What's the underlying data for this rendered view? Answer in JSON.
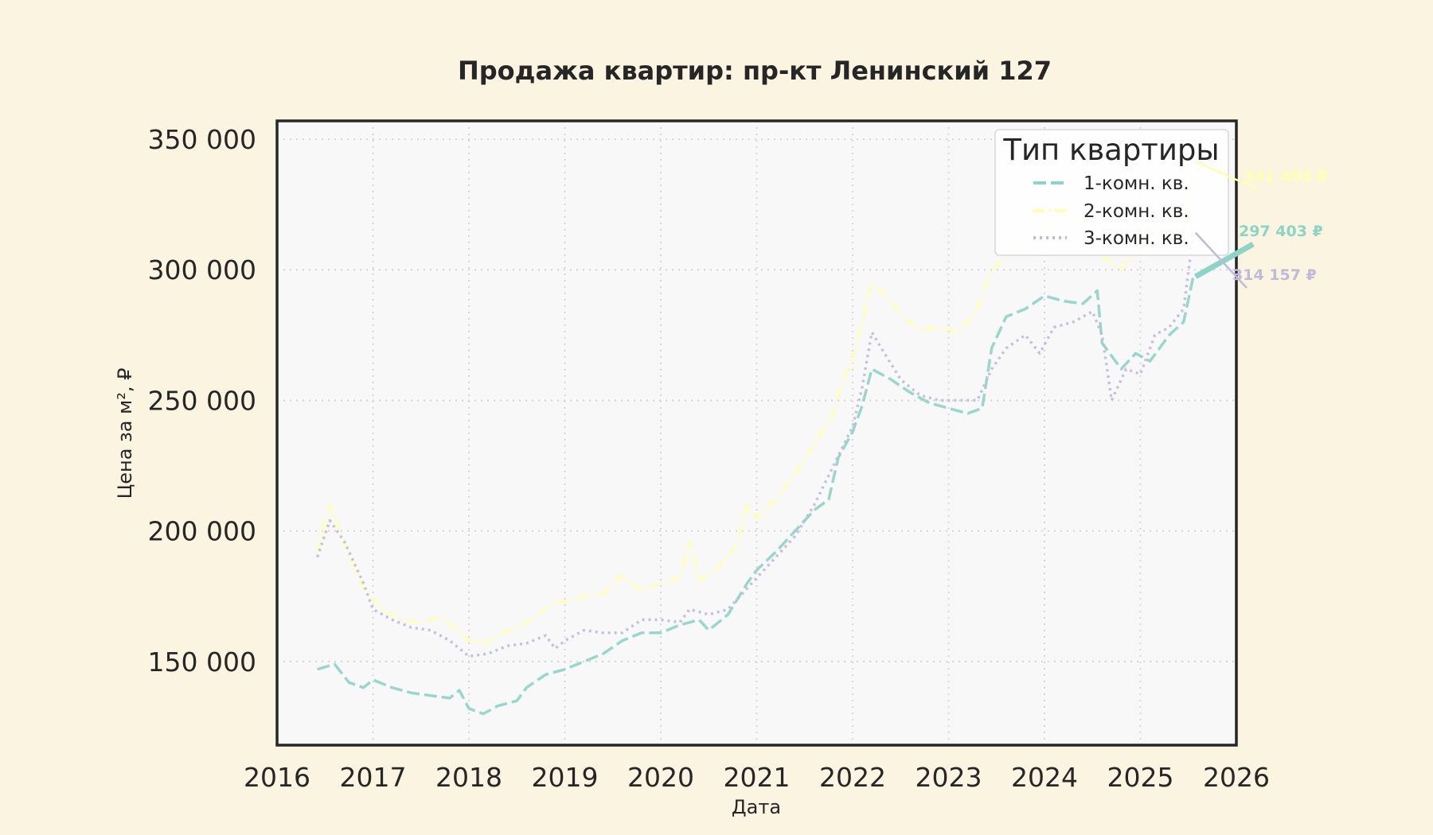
{
  "chart_data": {
    "type": "line",
    "title": "Продажа квартир: пр-кт Ленинский 127",
    "xlabel": "Дата",
    "ylabel": "Цена за м², ₽",
    "xlim": [
      2016,
      2026
    ],
    "ylim": [
      118000,
      357000
    ],
    "x_ticks": [
      "2016",
      "2017",
      "2018",
      "2019",
      "2020",
      "2021",
      "2022",
      "2023",
      "2024",
      "2025",
      "2026"
    ],
    "y_ticks": [
      "150 000",
      "200 000",
      "250 000",
      "300 000",
      "350 000"
    ],
    "grid": true,
    "legend": {
      "title": "Тип квартиры",
      "placement": "top-right"
    },
    "series": [
      {
        "name": "1-комн. кв.",
        "color": "#8dd3c7",
        "dash": "dashed",
        "end_label": "297 403 ₽",
        "points": [
          [
            2016.42,
            147000
          ],
          [
            2016.6,
            149000
          ],
          [
            2016.75,
            142000
          ],
          [
            2016.9,
            140000
          ],
          [
            2017.0,
            143000
          ],
          [
            2017.2,
            140000
          ],
          [
            2017.4,
            138000
          ],
          [
            2017.6,
            137000
          ],
          [
            2017.8,
            136000
          ],
          [
            2017.9,
            139000
          ],
          [
            2018.0,
            132000
          ],
          [
            2018.15,
            130000
          ],
          [
            2018.3,
            133000
          ],
          [
            2018.5,
            135000
          ],
          [
            2018.6,
            140000
          ],
          [
            2018.8,
            145000
          ],
          [
            2018.9,
            146000
          ],
          [
            2019.0,
            147000
          ],
          [
            2019.2,
            150000
          ],
          [
            2019.4,
            153000
          ],
          [
            2019.6,
            158000
          ],
          [
            2019.8,
            161000
          ],
          [
            2020.0,
            161000
          ],
          [
            2020.2,
            164000
          ],
          [
            2020.4,
            166000
          ],
          [
            2020.5,
            162000
          ],
          [
            2020.7,
            168000
          ],
          [
            2020.9,
            180000
          ],
          [
            2021.0,
            185000
          ],
          [
            2021.2,
            192000
          ],
          [
            2021.4,
            200000
          ],
          [
            2021.6,
            208000
          ],
          [
            2021.75,
            212000
          ],
          [
            2021.85,
            228000
          ],
          [
            2022.0,
            238000
          ],
          [
            2022.1,
            248000
          ],
          [
            2022.2,
            262000
          ],
          [
            2022.4,
            258000
          ],
          [
            2022.6,
            253000
          ],
          [
            2022.8,
            249000
          ],
          [
            2023.0,
            247000
          ],
          [
            2023.2,
            245000
          ],
          [
            2023.35,
            247000
          ],
          [
            2023.45,
            270000
          ],
          [
            2023.6,
            282000
          ],
          [
            2023.8,
            285000
          ],
          [
            2024.0,
            290000
          ],
          [
            2024.2,
            288000
          ],
          [
            2024.4,
            287000
          ],
          [
            2024.55,
            292000
          ],
          [
            2024.6,
            272000
          ],
          [
            2024.8,
            262000
          ],
          [
            2024.95,
            268000
          ],
          [
            2025.1,
            265000
          ],
          [
            2025.3,
            275000
          ],
          [
            2025.45,
            280000
          ],
          [
            2025.52,
            292000
          ],
          [
            2025.55,
            297403
          ]
        ]
      },
      {
        "name": "2-комн. кв.",
        "color": "#ffffb3",
        "dash": "dashdot",
        "end_label": "341 403 ₽",
        "points": [
          [
            2016.42,
            192000
          ],
          [
            2016.55,
            210000
          ],
          [
            2016.7,
            195000
          ],
          [
            2016.9,
            178000
          ],
          [
            2017.1,
            170000
          ],
          [
            2017.3,
            166000
          ],
          [
            2017.5,
            165000
          ],
          [
            2017.7,
            167000
          ],
          [
            2017.9,
            162000
          ],
          [
            2018.0,
            158000
          ],
          [
            2018.15,
            157000
          ],
          [
            2018.3,
            160000
          ],
          [
            2018.5,
            163000
          ],
          [
            2018.7,
            167000
          ],
          [
            2018.85,
            172000
          ],
          [
            2019.0,
            173000
          ],
          [
            2019.2,
            175000
          ],
          [
            2019.4,
            176000
          ],
          [
            2019.6,
            183000
          ],
          [
            2019.8,
            177000
          ],
          [
            2020.0,
            180000
          ],
          [
            2020.2,
            182000
          ],
          [
            2020.3,
            196000
          ],
          [
            2020.4,
            181000
          ],
          [
            2020.6,
            186000
          ],
          [
            2020.8,
            195000
          ],
          [
            2020.9,
            210000
          ],
          [
            2021.0,
            205000
          ],
          [
            2021.2,
            212000
          ],
          [
            2021.4,
            222000
          ],
          [
            2021.6,
            233000
          ],
          [
            2021.8,
            245000
          ],
          [
            2021.9,
            258000
          ],
          [
            2022.0,
            265000
          ],
          [
            2022.1,
            280000
          ],
          [
            2022.2,
            295000
          ],
          [
            2022.35,
            290000
          ],
          [
            2022.5,
            283000
          ],
          [
            2022.7,
            277000
          ],
          [
            2022.9,
            278000
          ],
          [
            2023.1,
            276000
          ],
          [
            2023.3,
            285000
          ],
          [
            2023.45,
            300000
          ],
          [
            2023.6,
            305000
          ],
          [
            2023.8,
            310000
          ],
          [
            2024.0,
            315000
          ],
          [
            2024.2,
            318000
          ],
          [
            2024.4,
            320000
          ],
          [
            2024.6,
            305000
          ],
          [
            2024.8,
            300000
          ],
          [
            2025.0,
            310000
          ],
          [
            2025.2,
            318000
          ],
          [
            2025.4,
            312000
          ],
          [
            2025.52,
            330000
          ],
          [
            2025.55,
            341403
          ]
        ]
      },
      {
        "name": "3-комн. кв.",
        "color": "#bebada",
        "dash": "dotted",
        "end_label": "314 157 ₽",
        "points": [
          [
            2016.42,
            190000
          ],
          [
            2016.55,
            204000
          ],
          [
            2016.7,
            196000
          ],
          [
            2016.9,
            180000
          ],
          [
            2017.0,
            170000
          ],
          [
            2017.2,
            166000
          ],
          [
            2017.4,
            163000
          ],
          [
            2017.6,
            162000
          ],
          [
            2017.8,
            158000
          ],
          [
            2018.0,
            152000
          ],
          [
            2018.2,
            153000
          ],
          [
            2018.4,
            156000
          ],
          [
            2018.6,
            157000
          ],
          [
            2018.8,
            160000
          ],
          [
            2018.9,
            155000
          ],
          [
            2019.0,
            158000
          ],
          [
            2019.2,
            162000
          ],
          [
            2019.4,
            161000
          ],
          [
            2019.6,
            161000
          ],
          [
            2019.8,
            166000
          ],
          [
            2020.0,
            166000
          ],
          [
            2020.2,
            165000
          ],
          [
            2020.3,
            170000
          ],
          [
            2020.5,
            168000
          ],
          [
            2020.7,
            170000
          ],
          [
            2020.9,
            178000
          ],
          [
            2021.0,
            182000
          ],
          [
            2021.2,
            190000
          ],
          [
            2021.4,
            198000
          ],
          [
            2021.6,
            210000
          ],
          [
            2021.8,
            225000
          ],
          [
            2022.0,
            240000
          ],
          [
            2022.1,
            255000
          ],
          [
            2022.2,
            276000
          ],
          [
            2022.3,
            270000
          ],
          [
            2022.5,
            258000
          ],
          [
            2022.7,
            252000
          ],
          [
            2022.9,
            250000
          ],
          [
            2023.1,
            250000
          ],
          [
            2023.3,
            250000
          ],
          [
            2023.45,
            262000
          ],
          [
            2023.6,
            270000
          ],
          [
            2023.8,
            275000
          ],
          [
            2023.95,
            268000
          ],
          [
            2024.1,
            278000
          ],
          [
            2024.3,
            280000
          ],
          [
            2024.5,
            284000
          ],
          [
            2024.6,
            275000
          ],
          [
            2024.7,
            250000
          ],
          [
            2024.85,
            262000
          ],
          [
            2025.0,
            260000
          ],
          [
            2025.15,
            275000
          ],
          [
            2025.3,
            278000
          ],
          [
            2025.45,
            285000
          ],
          [
            2025.52,
            305000
          ],
          [
            2025.55,
            314157
          ]
        ]
      }
    ]
  }
}
